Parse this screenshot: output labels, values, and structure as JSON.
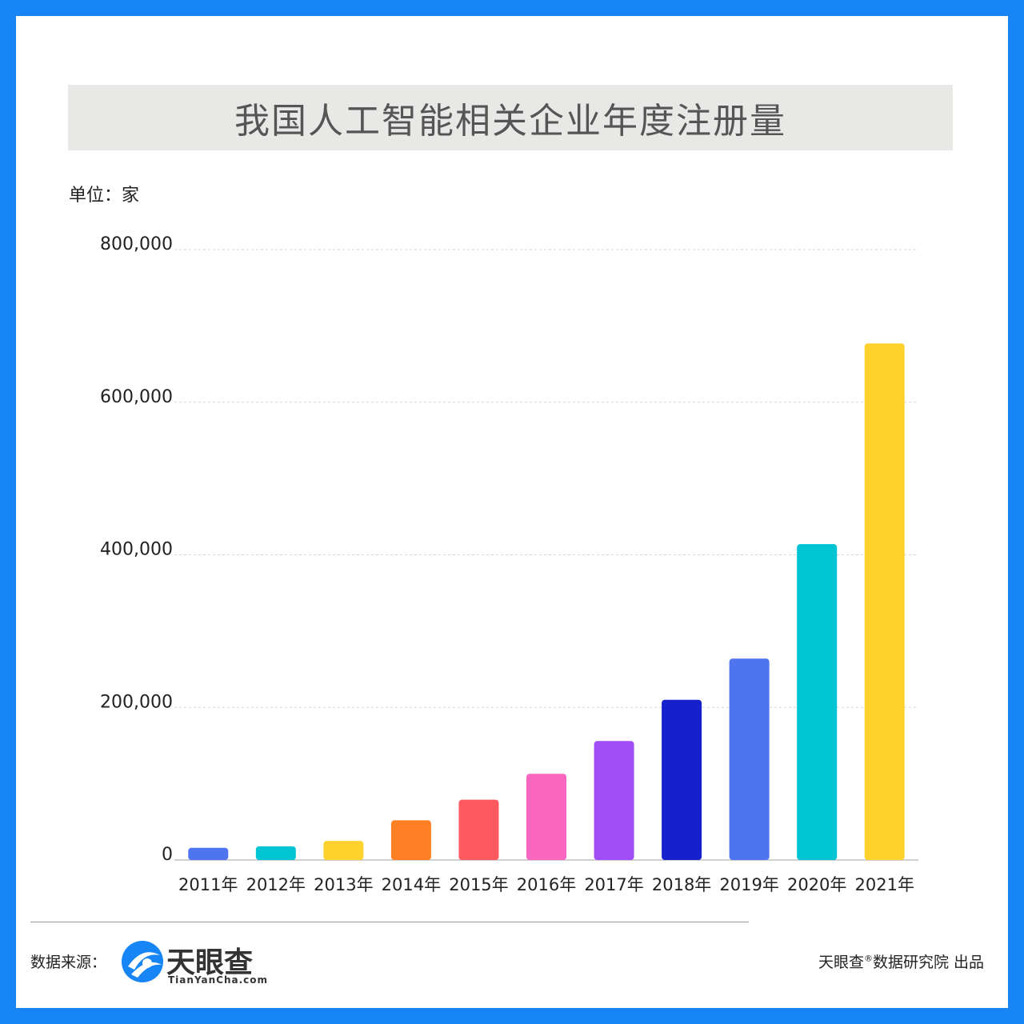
{
  "header": {
    "title": "我国人工智能相关企业年度注册量"
  },
  "unit_label": "单位：家",
  "chart_data": {
    "type": "bar",
    "title": "我国人工智能相关企业年度注册量",
    "ylabel": "单位：家",
    "xlabel": "",
    "ylim": [
      0,
      800000
    ],
    "yticks": [
      0,
      200000,
      400000,
      600000,
      800000
    ],
    "ytick_labels": [
      "0",
      "200,000",
      "400,000",
      "600,000",
      "800,000"
    ],
    "categories": [
      "2011年",
      "2012年",
      "2013年",
      "2014年",
      "2015年",
      "2016年",
      "2017年",
      "2018年",
      "2019年",
      "2020年",
      "2021年"
    ],
    "values": [
      16000,
      18000,
      25000,
      52000,
      79000,
      113000,
      156000,
      210000,
      264000,
      414000,
      677000
    ],
    "colors": [
      "#4f74f0",
      "#00c4d4",
      "#ffd22e",
      "#ff8024",
      "#ff5a5f",
      "#f966bf",
      "#a14df5",
      "#1621cc",
      "#4f74f0",
      "#00c4d4",
      "#ffd22e"
    ],
    "grid": true,
    "legend": "none"
  },
  "footer": {
    "source_label": "数据来源：",
    "logo_name": "天眼查",
    "logo_domain": "TianYanCha.com",
    "credit_prefix": "天眼查",
    "credit_mark": "®",
    "credit_suffix": "数据研究院 出品"
  }
}
